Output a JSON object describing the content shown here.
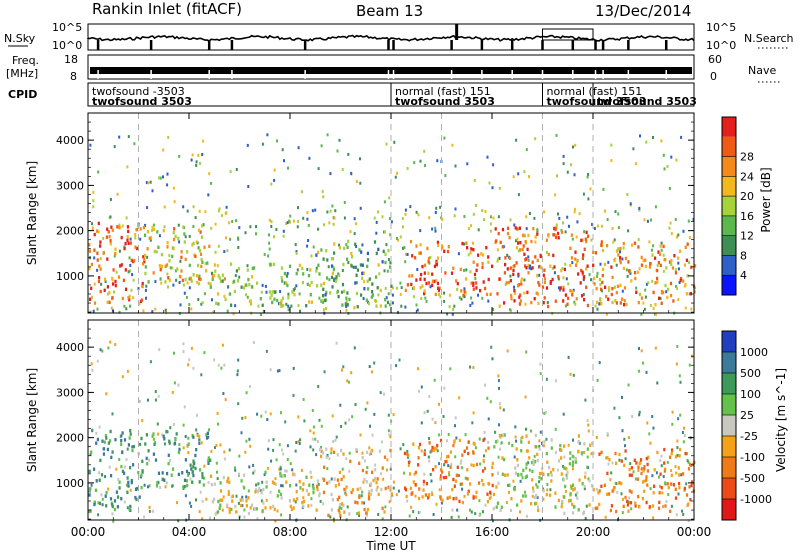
{
  "header": {
    "site": "Rankin Inlet (fitACF)",
    "beam": "Beam 13",
    "date": "13/Dec/2014"
  },
  "strips": {
    "noise": {
      "left_label": "N.Sky",
      "right_label": "N.Search",
      "left_ticks": [
        "10^5",
        "10^0"
      ],
      "right_ticks": [
        "10^5",
        "10^0"
      ]
    },
    "freq": {
      "left_label_line1": "Freq.",
      "left_label_line2": "[MHz]",
      "right_label": "Nave",
      "left_ticks": [
        "18",
        "8"
      ],
      "right_ticks": [
        "60",
        "0"
      ]
    },
    "cpid": {
      "label": "CPID",
      "entries": [
        {
          "line1": "twofsound -3503",
          "line2": "twofsound 3503",
          "start_h": 0.0
        },
        {
          "line1": "normal (fast) 151",
          "line2": "twofsound 3503",
          "start_h": 12.0
        },
        {
          "line1": "normal (fast) 151",
          "line2": "twofsound 3503",
          "start_h": 18.0
        },
        {
          "line1": "",
          "line2": "twofsound 3503",
          "start_h": 20.0
        }
      ]
    }
  },
  "xaxis": {
    "label": "Time UT",
    "ticks": [
      "00:00",
      "04:00",
      "08:00",
      "12:00",
      "16:00",
      "20:00",
      "00:00"
    ]
  },
  "panels": {
    "power": {
      "ylabel": "Slant Range [km]",
      "yticks": [
        "1000",
        "2000",
        "3000",
        "4000"
      ],
      "cbar_title": "Power [dB]",
      "cbar_labels": [
        "4",
        "8",
        "12",
        "16",
        "20",
        "24",
        "28"
      ],
      "colors": [
        "#0a14ff",
        "#2f5fc8",
        "#3f8f55",
        "#5bb74e",
        "#a6d23a",
        "#f2b81e",
        "#f58a1a",
        "#ef5a14",
        "#e3201a"
      ]
    },
    "velocity": {
      "ylabel": "Slant Range [km]",
      "yticks": [
        "1000",
        "2000",
        "3000",
        "4000"
      ],
      "cbar_title": "Velocity [m s^-1]",
      "cbar_labels": [
        "1000",
        "500",
        "100",
        "25",
        "-25",
        "-100",
        "-500",
        "-1000"
      ],
      "colors": [
        "#1f3fc0",
        "#3c7a9a",
        "#3d9a58",
        "#63c24a",
        "#c8c8c0",
        "#f3a21a",
        "#f07a14",
        "#ec4a16",
        "#e21818"
      ]
    }
  },
  "chart_data": [
    {
      "type": "heatmap",
      "title": "Rankin Inlet (fitACF) Beam 13 13/Dec/2014",
      "quantity": "Power [dB]",
      "xlabel": "Time UT",
      "ylabel": "Slant Range [km]",
      "xlim_hours": [
        0,
        24
      ],
      "ylim_km": [
        180,
        4600
      ],
      "color_levels": [
        4,
        8,
        12,
        16,
        20,
        24,
        28
      ],
      "regions": [
        {
          "t": [
            0.0,
            2.2
          ],
          "r": [
            400,
            2200
          ],
          "level": 26
        },
        {
          "t": [
            2.2,
            4.8
          ],
          "r": [
            900,
            2200
          ],
          "level": 18
        },
        {
          "t": [
            4.8,
            9.0
          ],
          "r": [
            350,
            1300
          ],
          "level": 16
        },
        {
          "t": [
            9.0,
            12.0
          ],
          "r": [
            300,
            1800
          ],
          "level": 12
        },
        {
          "t": [
            12.5,
            16.0
          ],
          "r": [
            600,
            1800
          ],
          "level": 26
        },
        {
          "t": [
            16.0,
            20.0
          ],
          "r": [
            350,
            2100
          ],
          "level": 26
        },
        {
          "t": [
            20.0,
            24.0
          ],
          "r": [
            400,
            1800
          ],
          "level": 24
        }
      ]
    },
    {
      "type": "heatmap",
      "title": "",
      "quantity": "Velocity [m s^-1]",
      "xlabel": "Time UT",
      "ylabel": "Slant Range [km]",
      "xlim_hours": [
        0,
        24
      ],
      "ylim_km": [
        180,
        4600
      ],
      "color_levels": [
        1000,
        500,
        100,
        25,
        -25,
        -100,
        -500,
        -1000
      ],
      "regions": [
        {
          "t": [
            0.0,
            2.2
          ],
          "r": [
            400,
            2200
          ],
          "level": 100
        },
        {
          "t": [
            2.2,
            4.8
          ],
          "r": [
            900,
            2200
          ],
          "level": 100
        },
        {
          "t": [
            4.8,
            9.0
          ],
          "r": [
            350,
            1300
          ],
          "level": 0
        },
        {
          "t": [
            9.0,
            12.0
          ],
          "r": [
            300,
            1800
          ],
          "level": -100
        },
        {
          "t": [
            12.5,
            16.0
          ],
          "r": [
            600,
            2000
          ],
          "level": -300
        },
        {
          "t": [
            16.0,
            20.0
          ],
          "r": [
            350,
            2100
          ],
          "level": 0
        },
        {
          "t": [
            20.0,
            24.0
          ],
          "r": [
            400,
            1800
          ],
          "level": -300
        }
      ]
    }
  ]
}
